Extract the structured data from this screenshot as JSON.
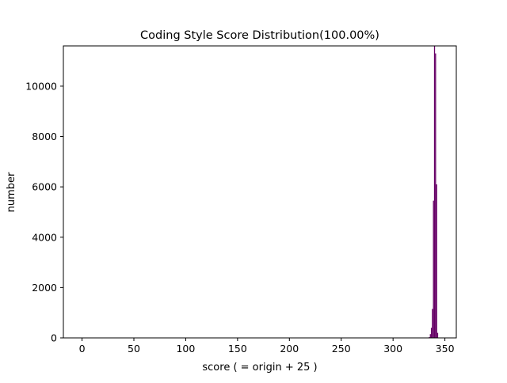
{
  "chart_data": {
    "type": "bar",
    "title": "Coding Style Score Distribution(100.00%)",
    "xlabel": "score ( = origin + 25 )",
    "ylabel": "number",
    "xlim": [
      -18,
      361
    ],
    "ylim": [
      0,
      11600
    ],
    "xticks": [
      0,
      50,
      100,
      150,
      200,
      250,
      300,
      350
    ],
    "yticks": [
      0,
      2000,
      4000,
      6000,
      8000,
      10000
    ],
    "grid": false,
    "bar_width": 1,
    "bar_color": "#660066",
    "bins": [
      {
        "x": 335,
        "value": 30
      },
      {
        "x": 336,
        "value": 150
      },
      {
        "x": 337,
        "value": 400
      },
      {
        "x": 338,
        "value": 1150
      },
      {
        "x": 339,
        "value": 5450
      },
      {
        "x": 340,
        "value": 11600
      },
      {
        "x": 341,
        "value": 11300
      },
      {
        "x": 342,
        "value": 6100
      },
      {
        "x": 343,
        "value": 200
      }
    ]
  }
}
